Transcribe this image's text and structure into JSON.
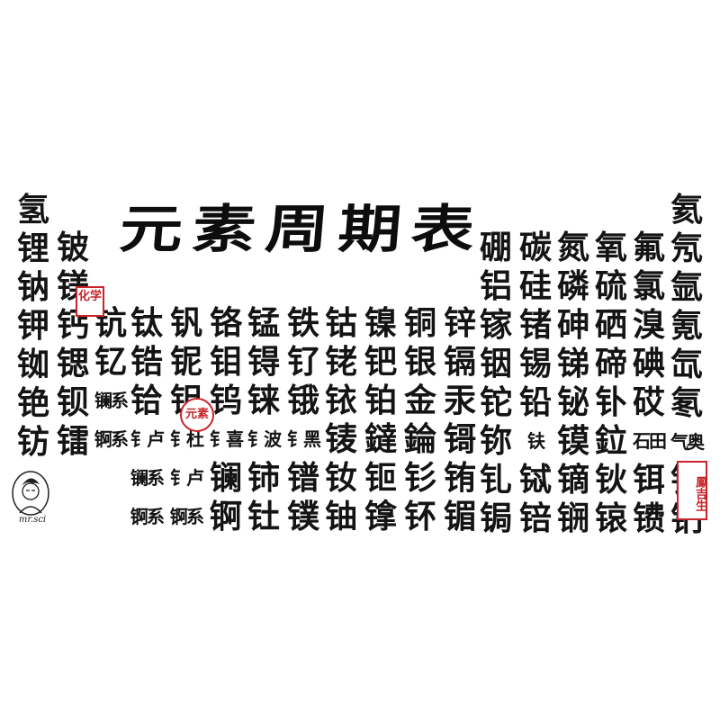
{
  "title": [
    "元",
    "素",
    "周",
    "期",
    "表"
  ],
  "columns": [
    [
      "氢",
      "锂",
      "钠",
      "钾",
      "铷",
      "铯",
      "钫"
    ],
    [
      "铍",
      "镁",
      "钙",
      "锶",
      "钡",
      "镭"
    ],
    [
      "钪",
      "钇",
      "镧系",
      "锕系"
    ],
    [
      "钛",
      "锆",
      "铪",
      "钅卢",
      "镧系",
      "锕系"
    ],
    [
      "钒",
      "铌",
      "钽",
      "钅杜",
      "钅卢",
      "锕系"
    ],
    [
      "铬",
      "钼",
      "钨",
      "钅喜",
      "镧",
      "锕"
    ],
    [
      "锰",
      "锝",
      "铼",
      "钅波",
      "铈",
      "钍"
    ],
    [
      "铁",
      "钌",
      "锇",
      "钅黑",
      "镨",
      "镤"
    ],
    [
      "钴",
      "铑",
      "铱",
      "鿏",
      "钕",
      "铀"
    ],
    [
      "镍",
      "钯",
      "铂",
      "鐽",
      "钷",
      "镎"
    ],
    [
      "铜",
      "银",
      "金",
      "錀",
      "钐",
      "钚"
    ],
    [
      "锌",
      "镉",
      "汞",
      "鿔",
      "铕",
      "镅"
    ],
    [
      "硼",
      "铝",
      "镓",
      "铟",
      "铊",
      "鿭",
      "钆",
      "锔"
    ],
    [
      "碳",
      "硅",
      "锗",
      "锡",
      "铅",
      "𫓧",
      "铽",
      "锫"
    ],
    [
      "氮",
      "磷",
      "砷",
      "锑",
      "铋",
      "镆",
      "镝",
      "锎"
    ],
    [
      "氧",
      "硫",
      "硒",
      "碲",
      "钋",
      "鉝",
      "钬",
      "锿"
    ],
    [
      "氟",
      "氯",
      "溴",
      "碘",
      "砹",
      "石田",
      "铒",
      "镄"
    ],
    [
      "氦",
      "氖",
      "氩",
      "氪",
      "氙",
      "氡",
      "气奥",
      "铥",
      "钔"
    ]
  ],
  "seals": [
    "化学",
    "元素",
    "鳳吉生"
  ],
  "logo_text": "mr.sci",
  "colors": {
    "ink": "#141414",
    "seal": "#c8242a",
    "background": "#ffffff"
  }
}
